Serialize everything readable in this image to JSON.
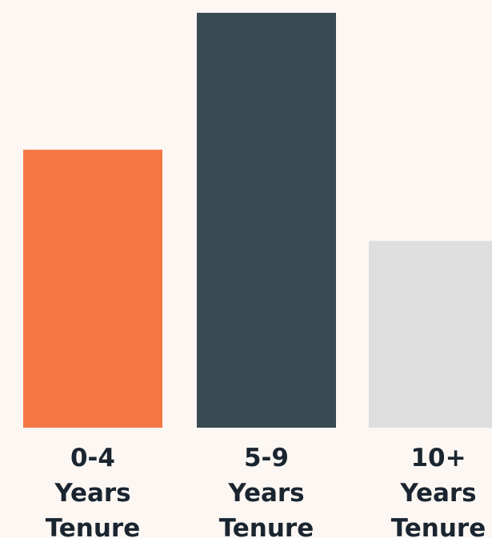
{
  "chart_data": {
    "type": "bar",
    "categories": [
      [
        "0-4",
        "Years",
        "Tenure"
      ],
      [
        "5-9",
        "Years",
        "Tenure"
      ],
      [
        "10+",
        "Years",
        "Tenure"
      ]
    ],
    "values": [
      67,
      100,
      45
    ],
    "colors": [
      "#f47744",
      "#394a53",
      "#dedede"
    ],
    "title": "",
    "xlabel": "",
    "ylabel": "",
    "ylim": [
      0,
      100
    ],
    "grid": false,
    "legend": "none"
  }
}
